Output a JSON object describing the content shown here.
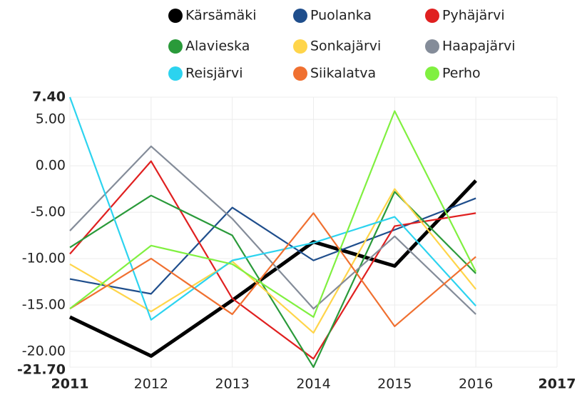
{
  "chart_data": {
    "type": "line",
    "x": [
      2011,
      2012,
      2013,
      2014,
      2015,
      2016
    ],
    "series": [
      {
        "name": "Kärsämäki",
        "color": "#000000",
        "values": [
          -16.3,
          -20.5,
          -14.5,
          -8.2,
          -10.8,
          -1.6
        ]
      },
      {
        "name": "Puolanka",
        "color": "#1f4e8c",
        "values": [
          -12.2,
          -13.8,
          -4.5,
          -10.2,
          -6.9,
          -3.5
        ]
      },
      {
        "name": "Pyhäjärvi",
        "color": "#e02020",
        "values": [
          -9.5,
          0.5,
          -14.3,
          -20.8,
          -6.5,
          -5.1
        ]
      },
      {
        "name": "Alavieska",
        "color": "#2a9a3a",
        "values": [
          -8.8,
          -3.2,
          -7.5,
          -21.7,
          -2.8,
          -11.6
        ]
      },
      {
        "name": "Sonkajärvi",
        "color": "#ffd54a",
        "values": [
          -10.6,
          -15.7,
          -10.3,
          -18.0,
          -2.5,
          -13.3
        ]
      },
      {
        "name": "Haapajärvi",
        "color": "#848c99",
        "values": [
          -7.0,
          2.1,
          -5.7,
          -15.4,
          -7.6,
          -16.0
        ]
      },
      {
        "name": "Reisjärvi",
        "color": "#2cd3ef",
        "values": [
          7.4,
          -16.6,
          -10.2,
          -8.3,
          -5.5,
          -15.1
        ]
      },
      {
        "name": "Siikalatva",
        "color": "#f07030",
        "values": [
          -15.4,
          -10.0,
          -16.0,
          -5.1,
          -17.3,
          -9.8
        ]
      },
      {
        "name": "Perho",
        "color": "#80f040",
        "values": [
          -15.4,
          -8.6,
          -10.6,
          -16.3,
          5.9,
          -11.4
        ]
      }
    ],
    "xlim": [
      2011,
      2017
    ],
    "xticks": [
      2011,
      2012,
      2013,
      2014,
      2015,
      2016,
      2017
    ],
    "ylim": [
      -21.7,
      7.4
    ],
    "yticks": [
      {
        "value": -21.7,
        "label": "-21.70"
      },
      {
        "value": -20,
        "label": "-20.00"
      },
      {
        "value": -15,
        "label": "-15.00"
      },
      {
        "value": -10,
        "label": "-10.00"
      },
      {
        "value": -5,
        "label": "-5.00"
      },
      {
        "value": 0,
        "label": "0.00"
      },
      {
        "value": 5,
        "label": "5.00"
      },
      {
        "value": 7.4,
        "label": "7.40"
      }
    ],
    "grid": true,
    "legend": "top"
  }
}
